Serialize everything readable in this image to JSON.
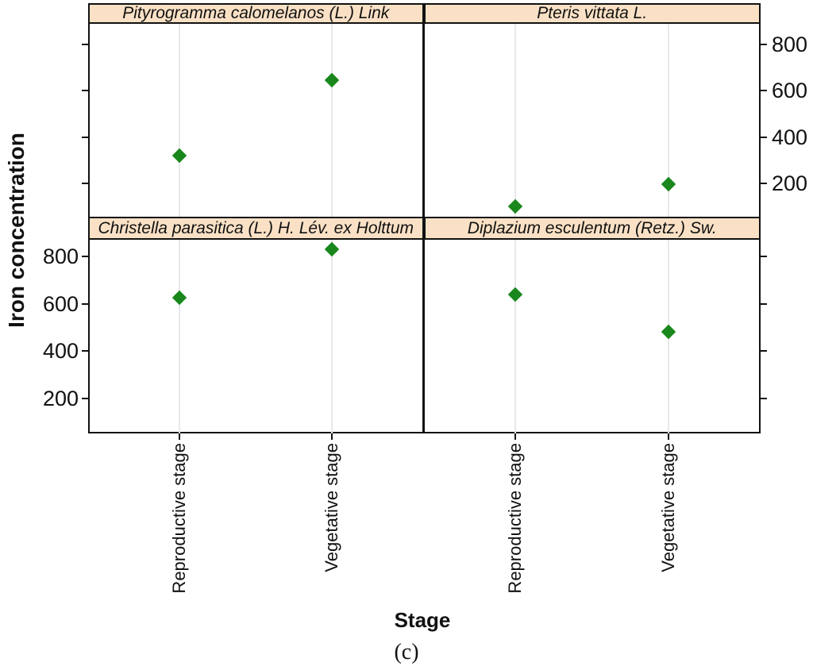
{
  "figure": {
    "y_axis_title": "Iron concentration",
    "x_axis_title": "Stage",
    "caption": "(c)"
  },
  "colors": {
    "background": "#FFFFFF",
    "strip_bg": "#FAE1C6",
    "border": "#111111",
    "point_fill": "#19871B",
    "gridline": "#E8E8E8",
    "text": "#111111"
  },
  "chart_data": {
    "type": "scatter",
    "lattice_layout": "2x2 panels, shared stage x-axis, green diamond markers",
    "title": "",
    "xlabel": "Stage",
    "ylabel": "Iron concentration",
    "x_categories": [
      "Reproductive stage",
      "Vegetative stage"
    ],
    "y_ticks": [
      200,
      400,
      600,
      800
    ],
    "y_tick_label_side": {
      "top": "right",
      "bottom": "left"
    },
    "ylim": {
      "top_row": [
        57,
        891
      ],
      "bottom_row": [
        51,
        873
      ]
    },
    "grid": "vertical reference line at each stage",
    "panels": [
      {
        "species": "Pityrogramma calomelanos (L.) Link",
        "row": "top",
        "col": "left",
        "points": [
          {
            "stage": "Reproductive stage",
            "value": 320
          },
          {
            "stage": "Vegetative stage",
            "value": 645
          }
        ]
      },
      {
        "species": "Pteris vittata L.",
        "row": "top",
        "col": "right",
        "points": [
          {
            "stage": "Reproductive stage",
            "value": 100
          },
          {
            "stage": "Vegetative stage",
            "value": 197
          }
        ]
      },
      {
        "species": "Christella parasitica (L.) H. Lév. ex Holttum",
        "row": "bottom",
        "col": "left",
        "points": [
          {
            "stage": "Reproductive stage",
            "value": 625
          },
          {
            "stage": "Vegetative stage",
            "value": 830
          }
        ]
      },
      {
        "species": "Diplazium esculentum (Retz.) Sw.",
        "row": "bottom",
        "col": "right",
        "points": [
          {
            "stage": "Reproductive stage",
            "value": 640
          },
          {
            "stage": "Vegetative stage",
            "value": 483
          }
        ]
      }
    ]
  }
}
